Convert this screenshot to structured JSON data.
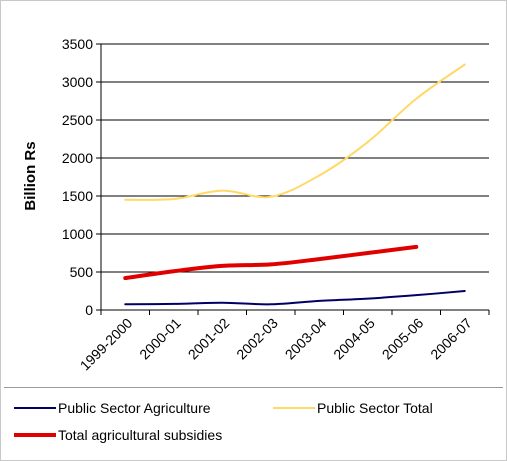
{
  "chart_data": {
    "type": "line",
    "title": "",
    "xlabel": "",
    "ylabel": "Billion Rs",
    "ylim": [
      0,
      3500
    ],
    "yticks": [
      0,
      500,
      1000,
      1500,
      2000,
      2500,
      3000,
      3500
    ],
    "categories": [
      "1999-2000",
      "2000-01",
      "2001-02",
      "2002-03",
      "2003-04",
      "2004-05",
      "2005-06",
      "2006-07"
    ],
    "grid": true,
    "legend_position": "bottom",
    "series": [
      {
        "name": "Public Sector Agriculture",
        "color": "#000066",
        "values": [
          75,
          80,
          95,
          75,
          120,
          150,
          195,
          250
        ]
      },
      {
        "name": "Public Sector Total",
        "color": "#ffd966",
        "values": [
          1450,
          1460,
          1570,
          1490,
          1770,
          2210,
          2780,
          3230
        ]
      },
      {
        "name": "Total agricultural subsidies",
        "color": "#e00000",
        "values": [
          420,
          510,
          580,
          600,
          670,
          750,
          830,
          null
        ]
      }
    ]
  }
}
